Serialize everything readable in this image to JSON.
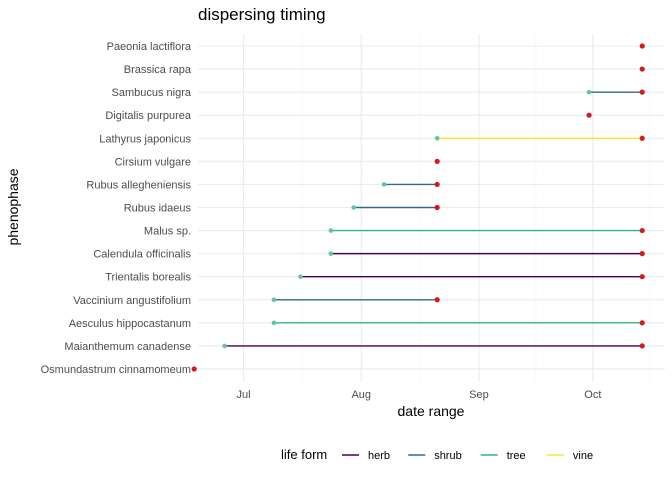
{
  "chart_data": {
    "type": "dumbbell",
    "title": "dispersing timing",
    "xlabel": "date range",
    "ylabel": "phenophase",
    "x_axis": {
      "ticks": [
        {
          "label": "Jul",
          "date": "07-01"
        },
        {
          "label": "Aug",
          "date": "08-01"
        },
        {
          "label": "Sep",
          "date": "09-01"
        },
        {
          "label": "Oct",
          "date": "10-01"
        }
      ],
      "xlim": [
        "06-19",
        "10-20"
      ]
    },
    "grid": true,
    "legend": {
      "title": "life form",
      "position": "bottom",
      "entries": [
        {
          "label": "herb",
          "color": "#440154"
        },
        {
          "label": "shrub",
          "color": "#31688e"
        },
        {
          "label": "tree",
          "color": "#35b779"
        },
        {
          "label": "vine",
          "color": "#fde725"
        }
      ]
    },
    "start_color": "#66c2a5",
    "end_color": "#d7191c",
    "categories": [
      "Paeonia lactiflora",
      "Brassica rapa",
      "Sambucus nigra",
      "Digitalis purpurea",
      "Lathyrus japonicus",
      "Cirsium vulgare",
      "Rubus allegheniensis",
      "Rubus idaeus",
      "Malus sp.",
      "Calendula officinalis",
      "Trientalis borealis",
      "Vaccinium angustifolium",
      "Aesculus hippocastanum",
      "Maianthemum canadense",
      "Osmundastrum cinnamomeum"
    ],
    "series": [
      {
        "label": "Paeonia lactiflora",
        "start": null,
        "end": "10-14",
        "life_form": null
      },
      {
        "label": "Brassica rapa",
        "start": null,
        "end": "10-14",
        "life_form": null
      },
      {
        "label": "Sambucus nigra",
        "start": "09-30",
        "end": "10-14",
        "life_form": "shrub"
      },
      {
        "label": "Digitalis purpurea",
        "start": null,
        "end": "09-30",
        "life_form": null
      },
      {
        "label": "Lathyrus japonicus",
        "start": "08-21",
        "end": "10-14",
        "life_form": "vine"
      },
      {
        "label": "Cirsium vulgare",
        "start": null,
        "end": "08-21",
        "life_form": null
      },
      {
        "label": "Rubus allegheniensis",
        "start": "08-07",
        "end": "08-21",
        "life_form": "shrub"
      },
      {
        "label": "Rubus idaeus",
        "start": "07-30",
        "end": "08-21",
        "life_form": "shrub"
      },
      {
        "label": "Malus sp.",
        "start": "07-24",
        "end": "10-14",
        "life_form": "tree"
      },
      {
        "label": "Calendula officinalis",
        "start": "07-24",
        "end": "10-14",
        "life_form": "herb"
      },
      {
        "label": "Trientalis borealis",
        "start": "07-16",
        "end": "10-14",
        "life_form": "herb"
      },
      {
        "label": "Vaccinium angustifolium",
        "start": "07-09",
        "end": "08-21",
        "life_form": "shrub"
      },
      {
        "label": "Aesculus hippocastanum",
        "start": "07-09",
        "end": "10-14",
        "life_form": "tree"
      },
      {
        "label": "Maianthemum canadense",
        "start": "06-26",
        "end": "10-14",
        "life_form": "herb"
      },
      {
        "label": "Osmundastrum cinnamomeum",
        "start": null,
        "end": "06-18",
        "life_form": null
      }
    ]
  }
}
